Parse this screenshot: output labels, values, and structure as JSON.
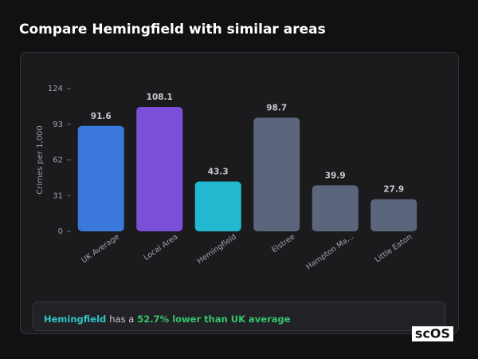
{
  "header": {
    "title": "Compare Hemingfield with similar areas"
  },
  "chart_data": {
    "type": "bar",
    "y_label": "Crimes per 1,000",
    "categories": [
      "UK Average",
      "Local Area",
      "Hemingfield",
      "Elstree",
      "Hampton Ma...",
      "Little Eaton"
    ],
    "values": [
      91.6,
      108.1,
      43.3,
      98.7,
      39.9,
      27.9
    ],
    "colors": [
      "#3b78dc",
      "#7b4fd8",
      "#22b8d0",
      "#5b667c",
      "#5b667c",
      "#5b667c"
    ],
    "ylim": [
      0,
      124
    ],
    "yticks": [
      0,
      31,
      62,
      93,
      124
    ]
  },
  "summary": {
    "area": "Hemingfield",
    "connector": "has a",
    "highlight": "52.7% lower than UK average"
  },
  "logo": "scOS"
}
